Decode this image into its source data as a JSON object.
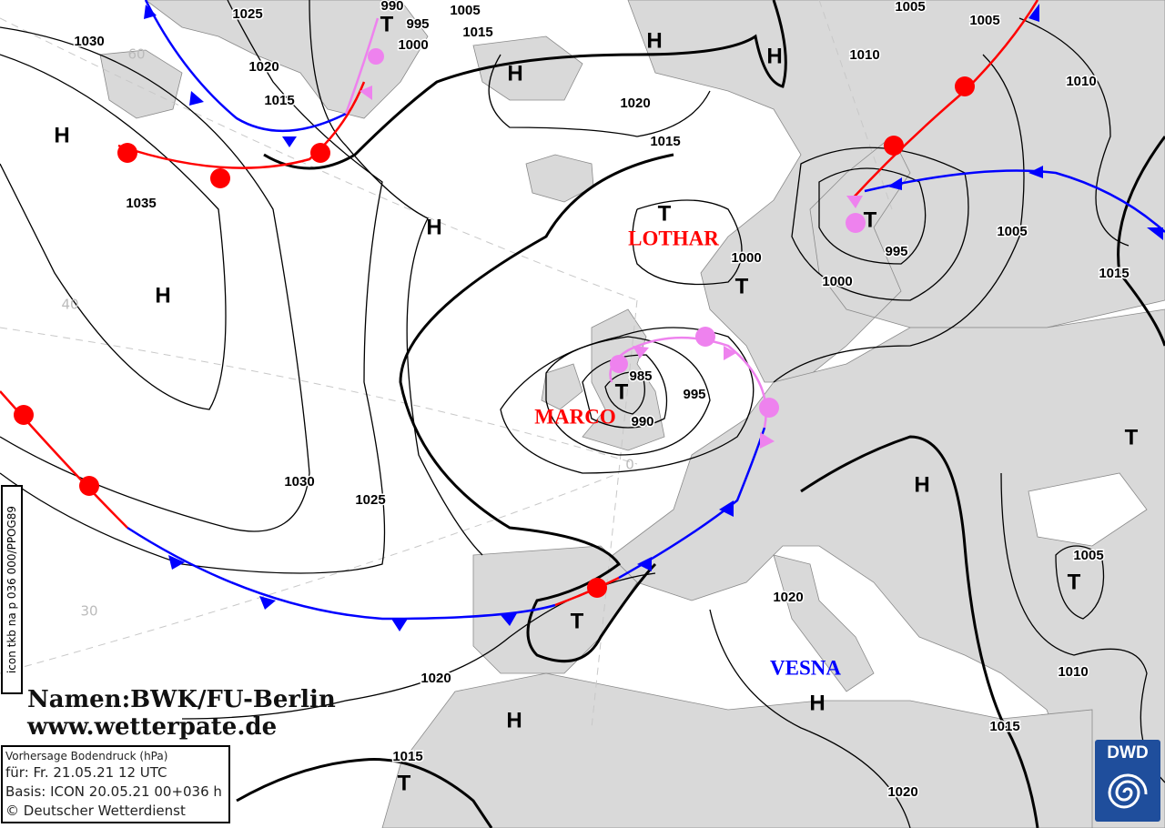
{
  "map": {
    "isobar_labels": [
      "1025",
      "1030",
      "1020",
      "1015",
      "990",
      "995",
      "1000",
      "1005",
      "1015",
      "1020",
      "1015",
      "1010",
      "1005",
      "1005",
      "1010",
      "1035",
      "1000",
      "1000",
      "995",
      "1005",
      "1015",
      "985",
      "995",
      "990",
      "1030",
      "1025",
      "1020",
      "1005",
      "1010",
      "1015",
      "1020",
      "1015",
      "1020"
    ],
    "high_label": "H",
    "low_label": "T",
    "latitude_labels": [
      "60",
      "40",
      "30",
      "0"
    ],
    "system_names": [
      {
        "name": "LOTHAR",
        "color": "#ff0000"
      },
      {
        "name": "MARCO",
        "color": "#ff0000"
      },
      {
        "name": "VESNA",
        "color": "#0000ff"
      }
    ],
    "colors": {
      "land": "#d9d9d9",
      "warm_front": "#ff0000",
      "cold_front": "#0000ff",
      "occlusion": "#ee82ee",
      "isobar": "#000000"
    }
  },
  "credits": {
    "names": "Namen:BWK/FU-Berlin",
    "website": "www.wetterpate.de"
  },
  "info": {
    "title": "Vorhersage Bodendruck (hPa)",
    "valid": "für:  Fr. 21.05.21  12 UTC",
    "basis": "Basis: ICON  20.05.21 00+036 h",
    "copyright": "© Deutscher Wetterdienst"
  },
  "product_code": "icon tkb na p 036 000/PPOG89",
  "logo": {
    "text": "DWD"
  }
}
